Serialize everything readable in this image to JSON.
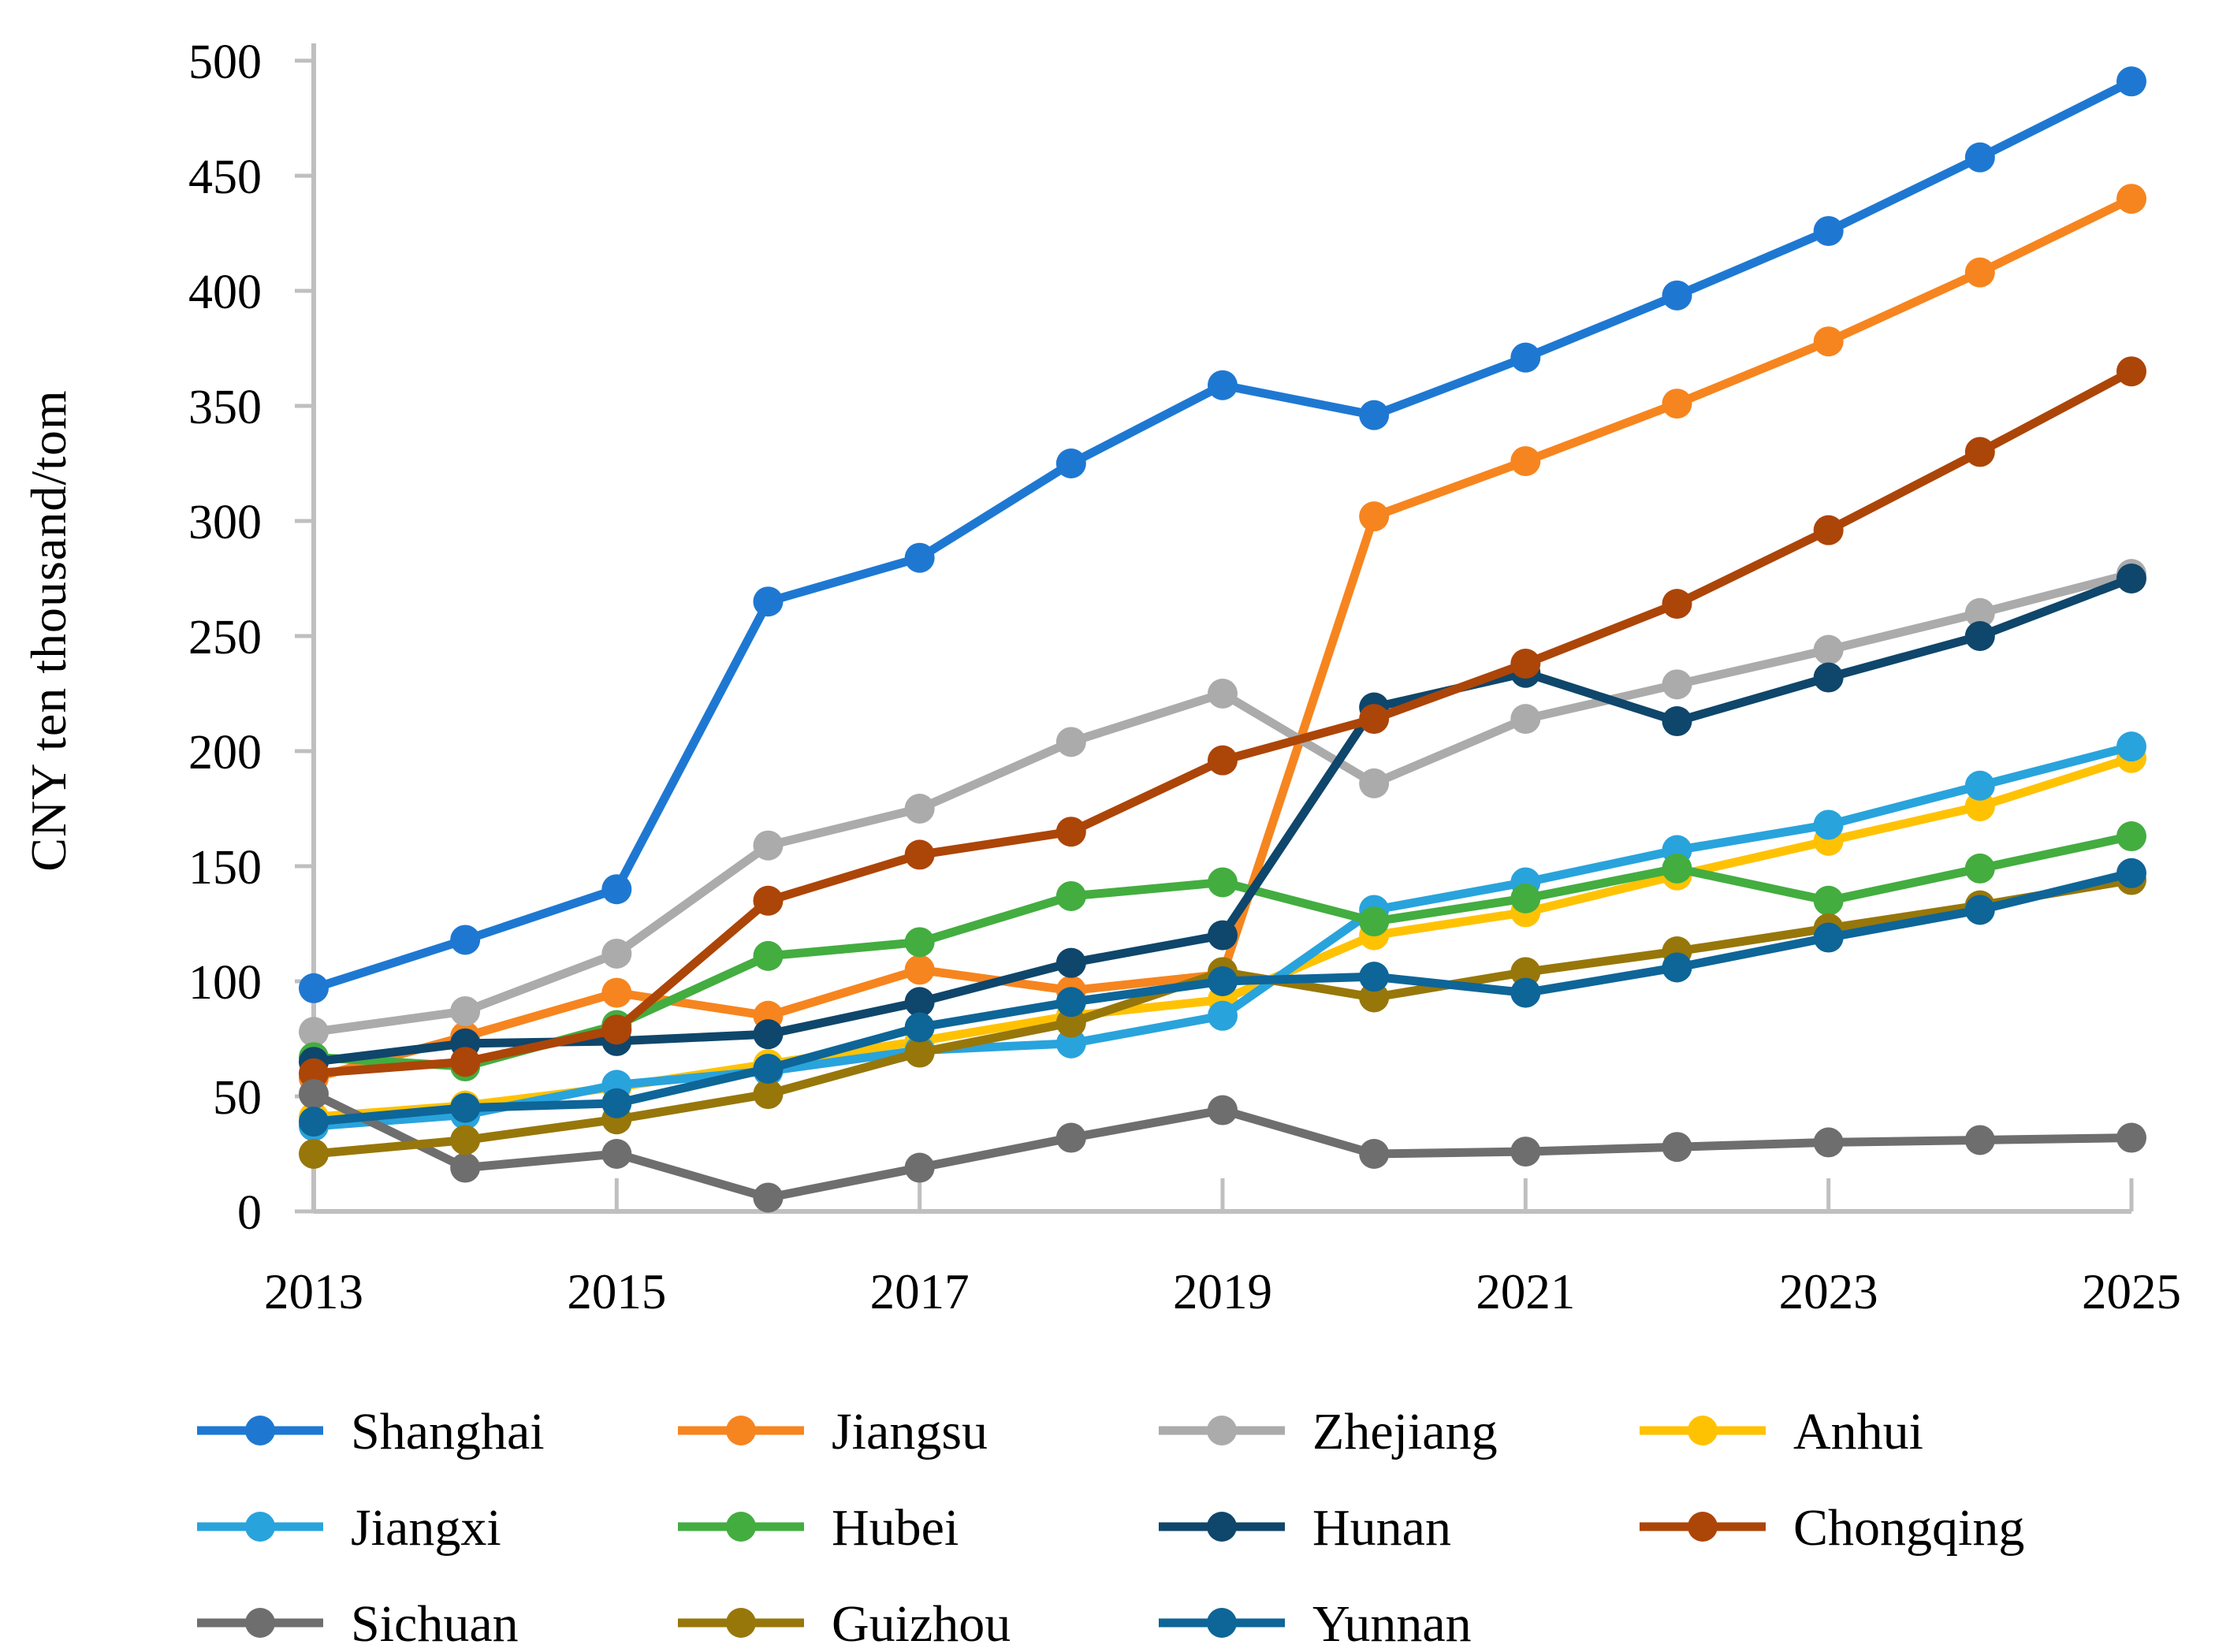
{
  "chart_data": {
    "type": "line",
    "title": "",
    "xlabel": "",
    "ylabel": "CNY ten thousand/tom",
    "ylim": [
      0,
      500
    ],
    "ytick_step": 50,
    "y_tick_labels": [
      "0",
      "50",
      "100",
      "150",
      "200",
      "250",
      "300",
      "350",
      "400",
      "450",
      "500"
    ],
    "x": [
      2013,
      2014,
      2015,
      2016,
      2017,
      2018,
      2019,
      2020,
      2021,
      2022,
      2023,
      2024,
      2025
    ],
    "x_tick_labels": [
      "2013",
      "2015",
      "2017",
      "2019",
      "2021",
      "2023",
      "2025"
    ],
    "grid": false,
    "legend_position": "bottom",
    "axis_color": "#BFBFBF",
    "series": [
      {
        "name": "Shanghai",
        "color": "#1E78D2",
        "values": [
          97,
          118,
          140,
          265,
          284,
          325,
          359,
          346,
          371,
          398,
          426,
          458,
          491
        ]
      },
      {
        "name": "Jiangsu",
        "color": "#F6851F",
        "values": [
          58,
          76,
          95,
          85,
          105,
          96,
          103,
          302,
          326,
          351,
          378,
          408,
          440
        ]
      },
      {
        "name": "Zhejiang",
        "color": "#ABABAB",
        "values": [
          78,
          87,
          112,
          159,
          175,
          204,
          225,
          186,
          214,
          229,
          244,
          260,
          277
        ]
      },
      {
        "name": "Anhui",
        "color": "#FFC203",
        "values": [
          41,
          46,
          54,
          64,
          74,
          85,
          92,
          120,
          130,
          146,
          161,
          176,
          197
        ]
      },
      {
        "name": "Jiangxi",
        "color": "#29A3DC",
        "values": [
          37,
          42,
          55,
          61,
          70,
          73,
          85,
          131,
          143,
          157,
          168,
          185,
          202
        ]
      },
      {
        "name": "Hubei",
        "color": "#43AD40",
        "values": [
          67,
          63,
          81,
          111,
          117,
          137,
          143,
          126,
          136,
          149,
          135,
          149,
          163
        ]
      },
      {
        "name": "Hunan",
        "color": "#0F466B",
        "values": [
          65,
          73,
          74,
          77,
          91,
          108,
          120,
          219,
          234,
          213,
          232,
          250,
          275
        ]
      },
      {
        "name": "Chongqing",
        "color": "#AC4508",
        "values": [
          60,
          65,
          79,
          135,
          155,
          165,
          196,
          214,
          238,
          264,
          296,
          330,
          365
        ]
      },
      {
        "name": "Sichuan",
        "color": "#6E6E6E",
        "values": [
          51,
          19,
          25,
          6,
          19,
          32,
          44,
          25,
          26,
          28,
          30,
          31,
          32
        ]
      },
      {
        "name": "Guizhou",
        "color": "#97770A",
        "values": [
          25,
          31,
          40,
          51,
          69,
          82,
          104,
          93,
          104,
          113,
          123,
          133,
          144
        ]
      },
      {
        "name": "Yunnan",
        "color": "#0E6598",
        "values": [
          39,
          45,
          47,
          62,
          80,
          91,
          100,
          102,
          95,
          106,
          119,
          131,
          147
        ]
      }
    ],
    "legend_rows": [
      [
        0,
        1,
        2,
        3
      ],
      [
        4,
        5,
        6,
        7
      ],
      [
        8,
        9,
        10
      ]
    ]
  }
}
